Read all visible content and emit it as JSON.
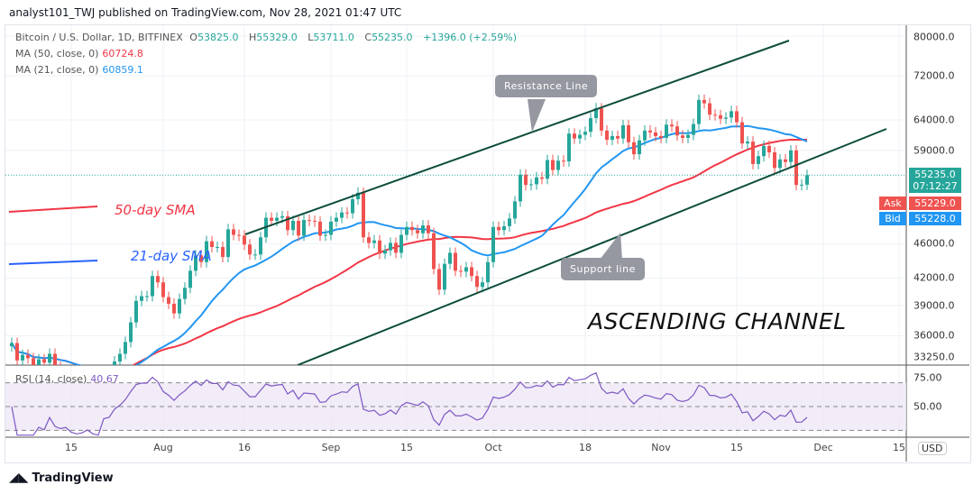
{
  "published": "analyst101_TWJ published on TradingView.com, Nov 28, 2021 01:47 UTC",
  "legend": {
    "symbol": "Bitcoin / U.S. Dollar, 1D, BITFINEX",
    "open_label": "O",
    "open": "53825.0",
    "high_label": "H",
    "high": "55329.0",
    "low_label": "L",
    "low": "53711.0",
    "close_label": "C",
    "close": "55235.0",
    "change": "+1396.0 (+2.59%)",
    "ma50_label": "MA (50, close, 0)",
    "ma50_value": "60724.8",
    "ma21_label": "MA (21, close, 0)",
    "ma21_value": "60859.1"
  },
  "rsi": {
    "label": "RSI (14, close)",
    "value": "40.67",
    "ticks": [
      "75.00",
      "50.00"
    ]
  },
  "price_axis": {
    "currency": "USD",
    "ticks": [
      "80000.0",
      "72000.0",
      "64000.0",
      "59000.0",
      "46000.0",
      "42000.0",
      "39000.0",
      "36000.0",
      "33250.0"
    ],
    "last_price": "55235.0",
    "countdown": "07:12:27",
    "ask_label": "Ask",
    "ask": "55229.0",
    "bid_label": "Bid",
    "bid": "55228.0"
  },
  "time_axis": [
    "15",
    "Aug",
    "16",
    "Sep",
    "15",
    "Oct",
    "18",
    "Nov",
    "15",
    "Dec",
    "15"
  ],
  "annotations": {
    "sma50": "50-day SMA",
    "sma21": "21-day SMA",
    "resistance": "Resistance Line",
    "support": "Support line",
    "channel": "ASCENDING CHANNEL"
  },
  "colors": {
    "up": "#26a69a",
    "down": "#ef5350",
    "ma50": "#f23645",
    "ma21": "#2196f3",
    "channel": "#0d4d3c",
    "rsi": "#7e57c2"
  },
  "logo": "TradingView",
  "chart_data": {
    "type": "candlestick",
    "scale": "log",
    "first_date": "2021-07-04",
    "interval": "1D",
    "first_open": 35000,
    "closes": [
      35300,
      33700,
      34200,
      33900,
      32900,
      33800,
      33500,
      34300,
      33100,
      32700,
      32800,
      31800,
      31400,
      31500,
      31800,
      30800,
      29800,
      32100,
      32300,
      33600,
      34300,
      35400,
      37300,
      39500,
      40000,
      40000,
      42200,
      41500,
      39900,
      39200,
      38200,
      39700,
      40900,
      42800,
      44600,
      43800,
      46300,
      45600,
      45600,
      44400,
      47800,
      47100,
      47000,
      45900,
      44700,
      44700,
      46800,
      49300,
      48900,
      49300,
      49500,
      47700,
      48900,
      47000,
      49000,
      48900,
      48800,
      47000,
      47100,
      48800,
      49300,
      50000,
      49900,
      51800,
      52700,
      46800,
      46100,
      46400,
      44800,
      45200,
      46100,
      44900,
      47100,
      48100,
      47700,
      47300,
      48300,
      47300,
      43000,
      40700,
      43600,
      44900,
      42800,
      42700,
      43200,
      42200,
      41000,
      41500,
      43800,
      48100,
      47700,
      48200,
      49200,
      51500,
      55300,
      53800,
      53900,
      54900,
      54700,
      57500,
      56000,
      57400,
      57300,
      61700,
      60900,
      61500,
      62000,
      64300,
      66000,
      62200,
      60700,
      61300,
      60900,
      63100,
      60300,
      58400,
      60600,
      62200,
      61900,
      61300,
      61000,
      63200,
      62900,
      61400,
      61000,
      61500,
      63300,
      67500,
      66900,
      64900,
      64800,
      64200,
      64400,
      65500,
      63600,
      60100,
      60400,
      56900,
      58100,
      59700,
      58700,
      56300,
      57600,
      57200,
      59000,
      53800,
      53839,
      55235
    ],
    "ylim": [
      33250,
      80000
    ],
    "rsi_ylim": [
      25,
      90
    ]
  }
}
